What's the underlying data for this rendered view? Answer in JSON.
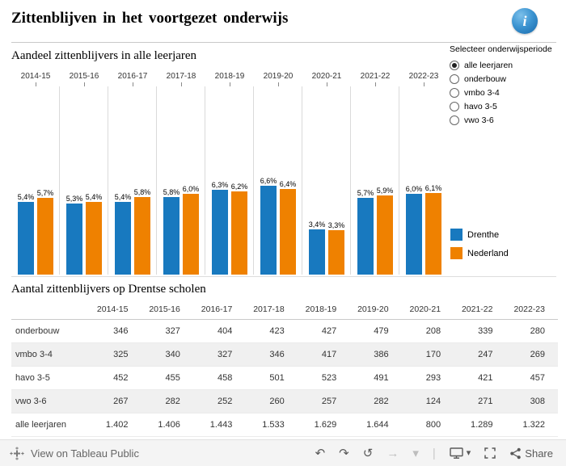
{
  "header": {
    "title": "Zittenblijven in het voortgezet onderwijs",
    "info_glyph": "i"
  },
  "chart": {
    "title": "Aandeel zittenblijvers in alle leerjaren"
  },
  "chart_data": {
    "type": "bar",
    "title": "Aandeel zittenblijvers in alle leerjaren",
    "categories": [
      "2014-15",
      "2015-16",
      "2016-17",
      "2017-18",
      "2018-19",
      "2019-20",
      "2020-21",
      "2021-22",
      "2022-23"
    ],
    "series": [
      {
        "name": "Drenthe",
        "color": "#1879bf",
        "values": [
          5.4,
          5.3,
          5.4,
          5.8,
          6.3,
          6.6,
          3.4,
          5.7,
          6.0
        ],
        "labels": [
          "5,4%",
          "5,3%",
          "5,4%",
          "5,8%",
          "6,3%",
          "6,6%",
          "3,4%",
          "5,7%",
          "6,0%"
        ]
      },
      {
        "name": "Nederland",
        "color": "#ef8100",
        "values": [
          5.7,
          5.4,
          5.8,
          6.0,
          6.2,
          6.4,
          3.3,
          5.9,
          6.1
        ],
        "labels": [
          "5,7%",
          "5,4%",
          "5,8%",
          "6,0%",
          "6,2%",
          "6,4%",
          "3,3%",
          "5,9%",
          "6,1%"
        ]
      }
    ],
    "xlabel": "",
    "ylabel": "",
    "ylim": [
      0,
      7
    ],
    "value_format": "percent-one-decimal-nl",
    "legend_position": "right",
    "grid": "vertical-column-separators"
  },
  "filter": {
    "title": "Selecteer onderwijsperiode",
    "options": [
      {
        "label": "alle leerjaren",
        "selected": true
      },
      {
        "label": "onderbouw",
        "selected": false
      },
      {
        "label": "vmbo 3-4",
        "selected": false
      },
      {
        "label": "havo 3-5",
        "selected": false
      },
      {
        "label": "vwo 3-6",
        "selected": false
      }
    ]
  },
  "table": {
    "title": "Aantal zittenblijvers op Drentse scholen",
    "columns": [
      "2014-15",
      "2015-16",
      "2016-17",
      "2017-18",
      "2018-19",
      "2019-20",
      "2020-21",
      "2021-22",
      "2022-23"
    ],
    "rows": [
      {
        "label": "onderbouw",
        "values": [
          "346",
          "327",
          "404",
          "423",
          "427",
          "479",
          "208",
          "339",
          "280"
        ]
      },
      {
        "label": "vmbo 3-4",
        "values": [
          "325",
          "340",
          "327",
          "346",
          "417",
          "386",
          "170",
          "247",
          "269"
        ]
      },
      {
        "label": "havo 3-5",
        "values": [
          "452",
          "455",
          "458",
          "501",
          "523",
          "491",
          "293",
          "421",
          "457"
        ]
      },
      {
        "label": "vwo 3-6",
        "values": [
          "267",
          "282",
          "252",
          "260",
          "257",
          "282",
          "124",
          "271",
          "308"
        ]
      },
      {
        "label": "alle leerjaren",
        "values": [
          "1.402",
          "1.406",
          "1.443",
          "1.533",
          "1.629",
          "1.644",
          "800",
          "1.289",
          "1.322"
        ]
      }
    ]
  },
  "footer": {
    "view_label": "View on Tableau Public",
    "share_label": "Share",
    "separator_glyph": "|",
    "caret_glyph": "▾",
    "icons": [
      {
        "name": "undo-icon",
        "glyph": "↶",
        "enabled": true
      },
      {
        "name": "redo-icon",
        "glyph": "↷",
        "enabled": true
      },
      {
        "name": "reset-icon",
        "glyph": "↺",
        "enabled": true
      },
      {
        "name": "refresh-icon",
        "glyph": "→",
        "enabled": false
      },
      {
        "name": "pause-caret-icon",
        "glyph": "▾",
        "enabled": false
      }
    ]
  }
}
